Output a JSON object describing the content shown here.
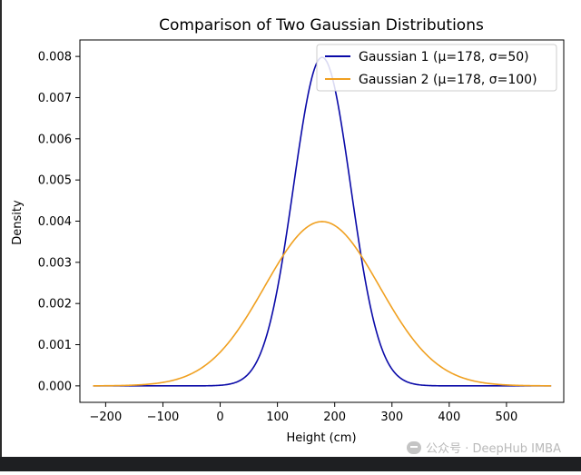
{
  "chart_data": {
    "type": "line",
    "title": "Comparison of Two Gaussian Distributions",
    "xlabel": "Height (cm)",
    "ylabel": "Density",
    "xlim": [
      -245,
      600
    ],
    "ylim": [
      -0.0004,
      0.0084
    ],
    "xticks": [
      -200,
      -100,
      0,
      100,
      200,
      300,
      400,
      500
    ],
    "xtick_labels": [
      "−200",
      "−100",
      "0",
      "100",
      "200",
      "300",
      "400",
      "500"
    ],
    "yticks": [
      0.0,
      0.001,
      0.002,
      0.003,
      0.004,
      0.005,
      0.006,
      0.007,
      0.008
    ],
    "ytick_labels": [
      "0.000",
      "0.001",
      "0.002",
      "0.003",
      "0.004",
      "0.005",
      "0.006",
      "0.007",
      "0.008"
    ],
    "grid": false,
    "legend_position": "top-right",
    "x_range": [
      -222,
      578
    ],
    "series": [
      {
        "name": "Gaussian 1 (μ=178, σ=50)",
        "mu": 178,
        "sigma": 50,
        "color": "#0a0aa8"
      },
      {
        "name": "Gaussian 2 (μ=178, σ=100)",
        "mu": 178,
        "sigma": 100,
        "color": "#f0a020"
      }
    ]
  },
  "watermark": {
    "text": "公众号 · DeepHub IMBA"
  }
}
